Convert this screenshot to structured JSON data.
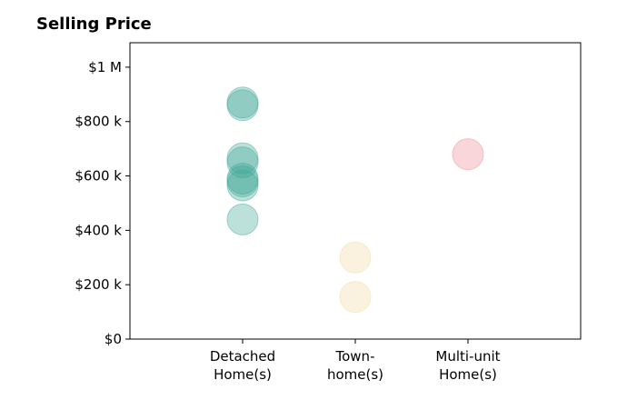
{
  "chart_data": {
    "type": "scatter",
    "title": "Selling Price",
    "xlabel": "",
    "ylabel": "",
    "categories": [
      "Detached\nHome(s)",
      "Town-\nhome(s)",
      "Multi-unit\nHome(s)"
    ],
    "xlim": [
      -1,
      3
    ],
    "ylim": [
      0,
      1090000
    ],
    "y_ticks": [
      0,
      200000,
      400000,
      600000,
      800000,
      1000000
    ],
    "y_tick_labels": [
      "$0",
      "$200 k",
      "$400 k",
      "$600 k",
      "$800 k",
      "$1 M"
    ],
    "grid": false,
    "legend": false,
    "series": [
      {
        "category": "Detached\nHome(s)",
        "color": "#3fa796",
        "values": [
          870000,
          860000,
          665000,
          650000,
          590000,
          580000,
          565000,
          440000
        ]
      },
      {
        "category": "Town-\nhome(s)",
        "color": "#f0d9a0",
        "values": [
          300000,
          155000
        ]
      },
      {
        "category": "Multi-unit\nHome(s)",
        "color": "#ef8a92",
        "values": [
          680000
        ]
      }
    ]
  }
}
